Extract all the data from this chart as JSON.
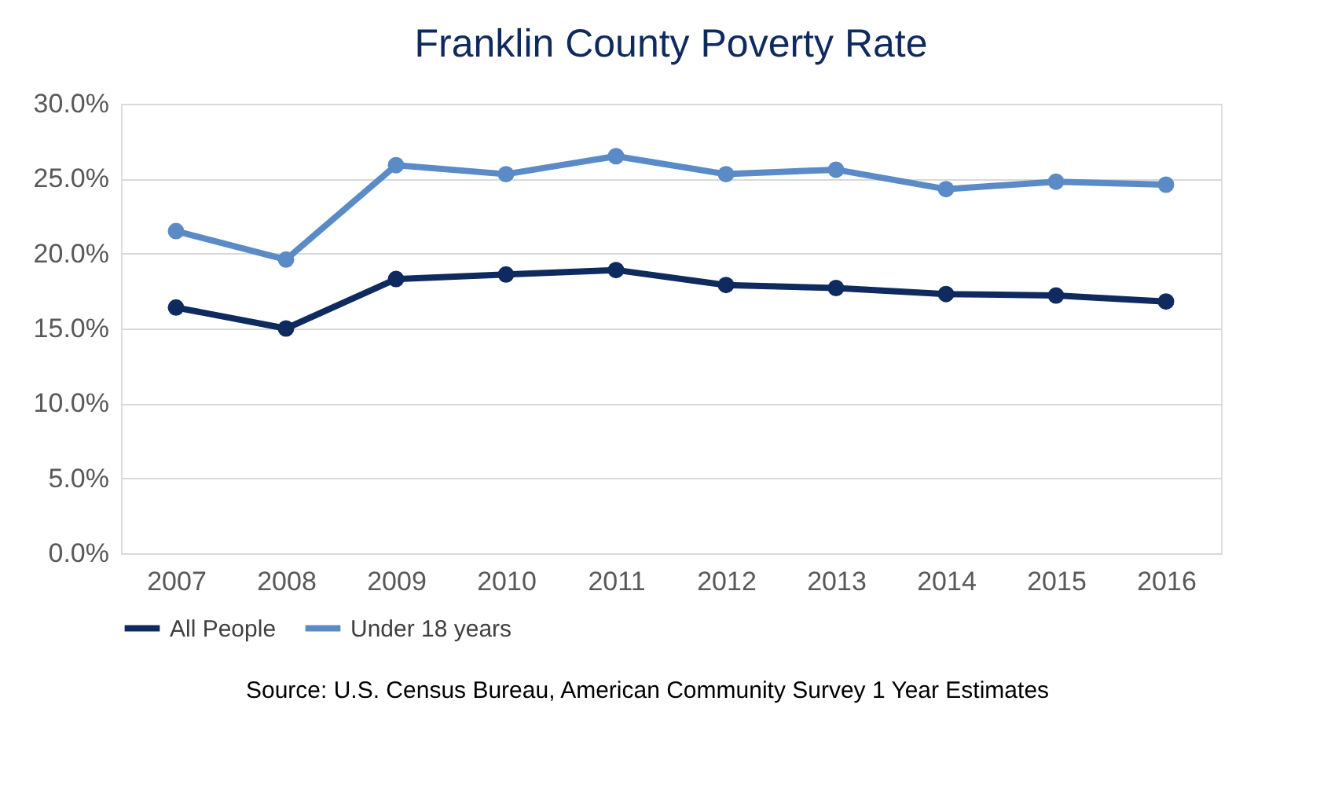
{
  "chart_data": {
    "type": "line",
    "title": "Franklin County Poverty Rate",
    "categories": [
      "2007",
      "2008",
      "2009",
      "2010",
      "2011",
      "2012",
      "2013",
      "2014",
      "2015",
      "2016"
    ],
    "series": [
      {
        "name": "All People",
        "color": "#0f2a5e",
        "values": [
          16.4,
          15.0,
          18.3,
          18.6,
          18.9,
          17.9,
          17.7,
          17.3,
          17.2,
          16.8
        ]
      },
      {
        "name": "Under 18 years",
        "color": "#5b8bc7",
        "values": [
          21.5,
          19.6,
          25.9,
          25.3,
          26.5,
          25.3,
          25.6,
          24.3,
          24.8,
          24.6
        ]
      }
    ],
    "ylim": [
      0,
      30
    ],
    "yticks": [
      {
        "value": 0,
        "label": "0.0%"
      },
      {
        "value": 5,
        "label": "5.0%"
      },
      {
        "value": 10,
        "label": "10.0%"
      },
      {
        "value": 15,
        "label": "15.0%"
      },
      {
        "value": 20,
        "label": "20.0%"
      },
      {
        "value": 25,
        "label": "25.0%"
      },
      {
        "value": 30,
        "label": "30.0%"
      }
    ],
    "grid": "y",
    "legend": "bottom",
    "marker": "circle",
    "line_style": "solid",
    "annotations": [
      "Source: U.S. Census Bureau, American Community Survey 1 Year Estimates"
    ]
  }
}
